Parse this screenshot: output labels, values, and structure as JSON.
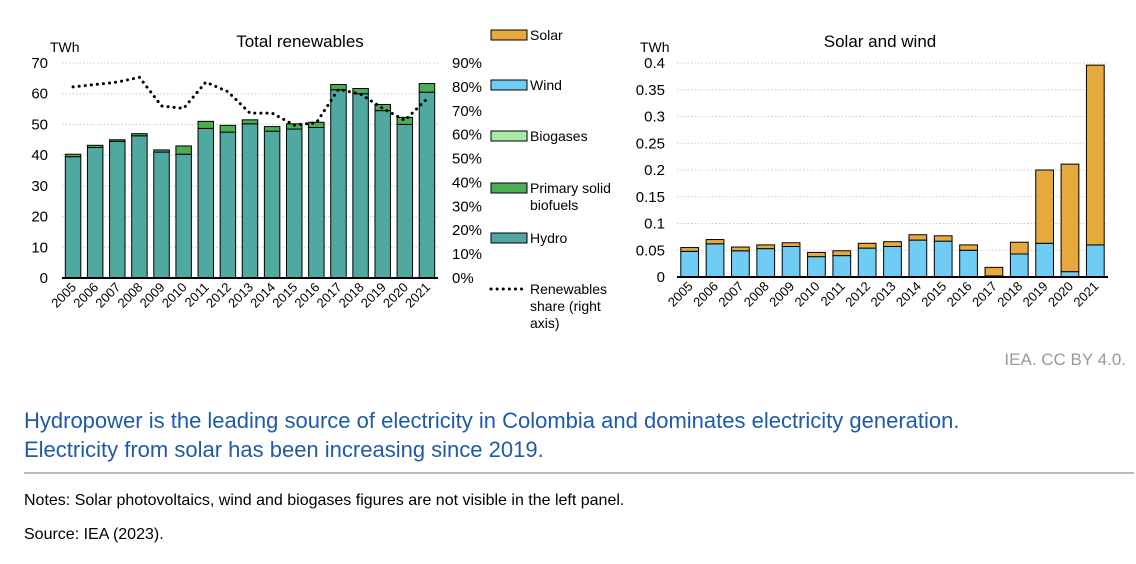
{
  "chart_data": [
    {
      "type": "bar",
      "stacked": true,
      "title": "Total renewables",
      "ylabel": "TWh",
      "ylim": [
        0,
        70
      ],
      "yticks": [
        0,
        10,
        20,
        30,
        40,
        50,
        60,
        70
      ],
      "y2lim": [
        0,
        90
      ],
      "y2ticks": [
        "0%",
        "10%",
        "20%",
        "30%",
        "40%",
        "50%",
        "60%",
        "70%",
        "80%",
        "90%"
      ],
      "grid": true,
      "categories": [
        "2005",
        "2006",
        "2007",
        "2008",
        "2009",
        "2010",
        "2011",
        "2012",
        "2013",
        "2014",
        "2015",
        "2016",
        "2017",
        "2018",
        "2019",
        "2020",
        "2021"
      ],
      "series": [
        {
          "name": "Hydro",
          "color": "#4fa9a0",
          "values": [
            39.5,
            42.5,
            44.5,
            46.3,
            41,
            40.3,
            48.7,
            47.5,
            50.2,
            47.8,
            48.5,
            49,
            61.3,
            60,
            54.5,
            50,
            60.5
          ]
        },
        {
          "name": "Primary solid biofuels",
          "color": "#4cae54",
          "values": [
            0.8,
            0.7,
            0.5,
            0.7,
            0.7,
            2.7,
            2.3,
            2.2,
            1.3,
            1.5,
            1.7,
            1.7,
            1.7,
            1.7,
            2,
            2.3,
            2.8
          ]
        },
        {
          "name": "Biogases",
          "color": "#a6eaa6",
          "values": [
            0,
            0,
            0,
            0,
            0,
            0,
            0,
            0,
            0,
            0,
            0,
            0,
            0,
            0,
            0,
            0,
            0
          ]
        },
        {
          "name": "Wind",
          "color": "#6fcdf5",
          "values": [
            0,
            0,
            0,
            0,
            0,
            0,
            0,
            0,
            0,
            0,
            0,
            0,
            0,
            0,
            0,
            0,
            0
          ]
        },
        {
          "name": "Solar",
          "color": "#e6aa3c",
          "values": [
            0,
            0,
            0,
            0,
            0,
            0,
            0,
            0,
            0,
            0,
            0,
            0,
            0,
            0,
            0,
            0,
            0
          ]
        }
      ],
      "line": {
        "name": "Renewables share (right axis)",
        "axis": "right",
        "values": [
          80,
          81,
          82,
          84,
          72,
          71,
          82,
          78,
          69,
          69,
          64,
          65,
          79,
          77,
          71,
          66,
          75
        ]
      },
      "legend": [
        "Solar",
        "Wind",
        "Biogases",
        "Primary solid biofuels",
        "Hydro",
        "Renewables share (right axis)"
      ],
      "legend_placement": "right"
    },
    {
      "type": "bar",
      "stacked": true,
      "title": "Solar and wind",
      "ylabel": "TWh",
      "ylim": [
        0,
        0.4
      ],
      "yticks": [
        "0",
        "0.05",
        "0.1",
        "0.15",
        "0.2",
        "0.25",
        "0.3",
        "0.35",
        "0.4"
      ],
      "grid": true,
      "categories": [
        "2005",
        "2006",
        "2007",
        "2008",
        "2009",
        "2010",
        "2011",
        "2012",
        "2013",
        "2014",
        "2015",
        "2016",
        "2017",
        "2018",
        "2019",
        "2020",
        "2021"
      ],
      "series": [
        {
          "name": "Wind",
          "color": "#6fcdf5",
          "values": [
            0.048,
            0.062,
            0.049,
            0.053,
            0.057,
            0.038,
            0.04,
            0.054,
            0.057,
            0.069,
            0.067,
            0.05,
            0.002,
            0.043,
            0.063,
            0.01,
            0.06
          ]
        },
        {
          "name": "Solar",
          "color": "#e6aa3c",
          "values": [
            0.007,
            0.008,
            0.007,
            0.007,
            0.007,
            0.008,
            0.009,
            0.009,
            0.009,
            0.01,
            0.01,
            0.01,
            0.016,
            0.022,
            0.137,
            0.201,
            0.336
          ]
        }
      ]
    }
  ],
  "credit": "IEA. CC BY 4.0.",
  "caption": "Hydropower is the leading source of electricity in Colombia and dominates electricity generation. Electricity from solar has been increasing since 2019.",
  "notes": "Notes: Solar photovoltaics, wind and biogases figures are not visible in the left panel.",
  "source": "Source: IEA (2023)."
}
